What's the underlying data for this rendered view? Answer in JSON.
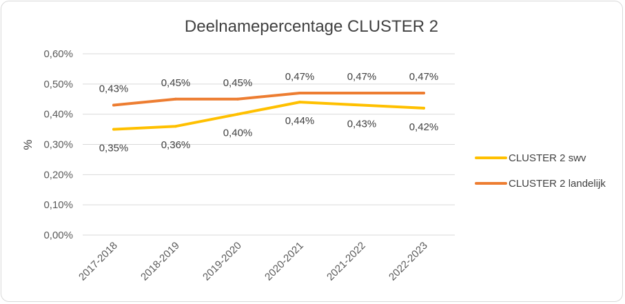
{
  "chart_data": {
    "type": "line",
    "title": "Deelnamepercentage CLUSTER 2",
    "xlabel": "",
    "ylabel": "%",
    "categories": [
      "2017-2018",
      "2018-2019",
      "2019-2020",
      "2020-2021",
      "2021-2022",
      "2022-2023"
    ],
    "ylim": [
      0,
      0.6
    ],
    "yticks": [
      0,
      0.1,
      0.2,
      0.3,
      0.4,
      0.5,
      0.6
    ],
    "ytick_labels": [
      "0,00%",
      "0,10%",
      "0,20%",
      "0,30%",
      "0,40%",
      "0,50%",
      "0,60%"
    ],
    "grid": true,
    "legend_position": "right",
    "series": [
      {
        "name": "CLUSTER 2 swv",
        "color": "#ffc000",
        "values": [
          0.35,
          0.36,
          0.4,
          0.44,
          0.43,
          0.42
        ],
        "labels": [
          "0,35%",
          "0,36%",
          "0,40%",
          "0,44%",
          "0,43%",
          "0,42%"
        ],
        "label_position": "below"
      },
      {
        "name": "CLUSTER 2 landelijk",
        "color": "#ed7d31",
        "values": [
          0.43,
          0.45,
          0.45,
          0.47,
          0.47,
          0.47
        ],
        "labels": [
          "0,43%",
          "0,45%",
          "0,45%",
          "0,47%",
          "0,47%",
          "0,47%"
        ],
        "label_position": "above"
      }
    ]
  }
}
